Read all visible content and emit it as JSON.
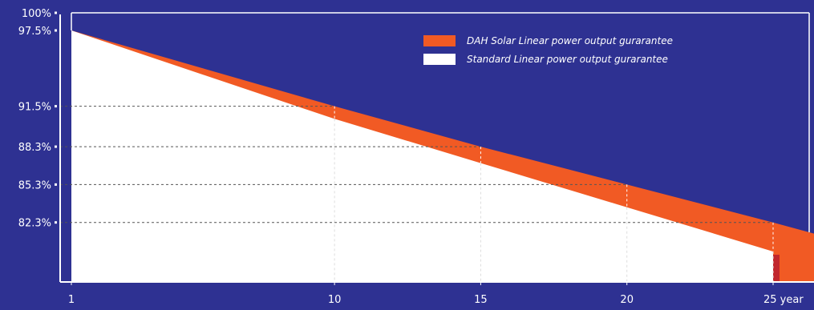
{
  "chart_data": {
    "type": "area",
    "title": "",
    "xlabel": "",
    "ylabel": "",
    "x_ticks": [
      {
        "value": 1,
        "label": "1"
      },
      {
        "value": 10,
        "label": "10"
      },
      {
        "value": 15,
        "label": "15"
      },
      {
        "value": 20,
        "label": "20"
      },
      {
        "value": 25,
        "label": "25 year"
      }
    ],
    "y_ticks": [
      {
        "value": 100,
        "label": "100%"
      },
      {
        "value": 97.5,
        "label": "97.5%"
      },
      {
        "value": 91.5,
        "label": "91.5%"
      },
      {
        "value": 88.3,
        "label": "88.3%"
      },
      {
        "value": 85.3,
        "label": "85.3%"
      },
      {
        "value": 82.3,
        "label": "82.3%"
      }
    ],
    "series": [
      {
        "name": "DAH Solar Linear power output gurarantee",
        "color": "#f15a24",
        "x": [
          1,
          10,
          15,
          20,
          25
        ],
        "y": [
          97.5,
          91.5,
          88.3,
          85.3,
          82.3
        ]
      },
      {
        "name": "Standard Linear power output gurarantee",
        "color": "#ffffff",
        "x": [
          1,
          10,
          15,
          20,
          25
        ],
        "y": [
          97.5,
          90.5,
          87.0,
          83.5,
          80.0
        ]
      }
    ],
    "reference_lines_y": [
      91.5,
      88.3,
      85.3,
      82.3
    ],
    "reference_lines_x": [
      10,
      15,
      20,
      25
    ],
    "legend_position": "top-right",
    "grid": true
  }
}
